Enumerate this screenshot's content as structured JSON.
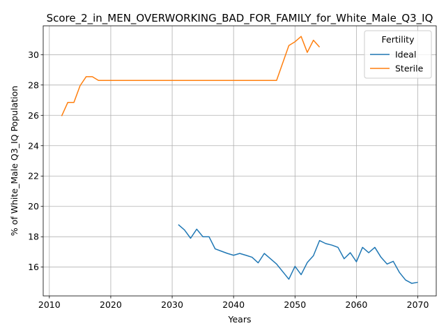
{
  "chart_data": {
    "type": "line",
    "title": "Score_2_in_MEN_OVERWORKING_BAD_FOR_FAMILY_for_White_Male_Q3_IQ",
    "xlabel": "Years",
    "ylabel": "% of White_Male Q3_IQ Population",
    "xlim": [
      2009,
      2073
    ],
    "ylim": [
      14.1,
      31.9
    ],
    "xticks": [
      2010,
      2020,
      2030,
      2040,
      2050,
      2060,
      2070
    ],
    "yticks": [
      16,
      18,
      20,
      22,
      24,
      26,
      28,
      30
    ],
    "grid": true,
    "legend": {
      "title": "Fertility",
      "placement": "top-right"
    },
    "series": [
      {
        "name": "Ideal",
        "color": "#1f77b4",
        "x": [
          2031,
          2032,
          2033,
          2034,
          2035,
          2036,
          2037,
          2038,
          2039,
          2040,
          2041,
          2042,
          2043,
          2044,
          2045,
          2046,
          2047,
          2048,
          2049,
          2050,
          2051,
          2052,
          2053,
          2054,
          2055,
          2056,
          2057,
          2058,
          2059,
          2060,
          2061,
          2062,
          2063,
          2064,
          2065,
          2066,
          2067,
          2068,
          2069,
          2070
        ],
        "y": [
          18.8,
          18.45,
          17.9,
          18.5,
          18.0,
          18.0,
          17.2,
          17.05,
          16.9,
          16.78,
          16.9,
          16.78,
          16.65,
          16.28,
          16.9,
          16.55,
          16.2,
          15.7,
          15.2,
          16.05,
          15.5,
          16.3,
          16.75,
          17.75,
          17.55,
          17.45,
          17.3,
          16.55,
          16.95,
          16.35,
          17.3,
          16.95,
          17.3,
          16.65,
          16.2,
          16.38,
          15.65,
          15.15,
          14.93,
          15.0
        ]
      },
      {
        "name": "Sterile",
        "color": "#ff7f0e",
        "x": [
          2012,
          2013,
          2014,
          2015,
          2016,
          2017,
          2018,
          2019,
          2020,
          2025,
          2030,
          2035,
          2040,
          2045,
          2046,
          2047,
          2048,
          2049,
          2050,
          2051,
          2052,
          2053,
          2054
        ],
        "y": [
          25.95,
          26.85,
          26.85,
          27.95,
          28.55,
          28.55,
          28.3,
          28.3,
          28.3,
          28.3,
          28.3,
          28.3,
          28.3,
          28.3,
          28.3,
          28.3,
          29.45,
          30.6,
          30.85,
          31.2,
          30.15,
          30.95,
          30.5
        ]
      }
    ]
  }
}
